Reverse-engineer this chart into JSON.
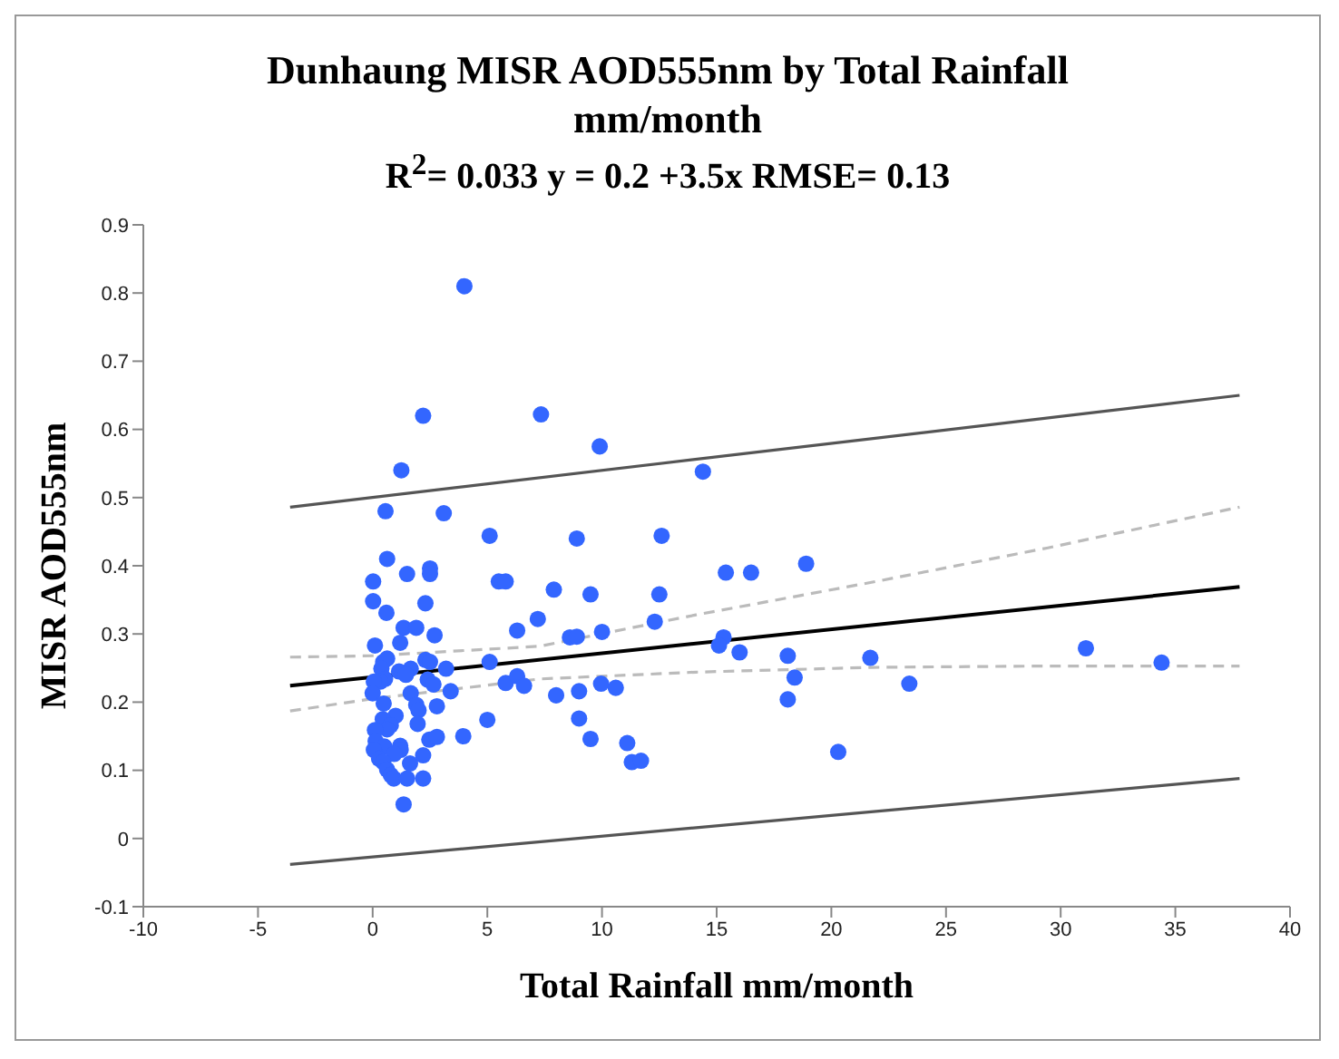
{
  "chart_data": {
    "type": "scatter",
    "title": "Dunhaung MISR AOD555nm by Total Rainfall mm/month",
    "subtitle": "R$^{2}$= 0.033 y = 0.2 +3.5x  RMSE= 0.13",
    "xlabel": "Total Rainfall mm/month",
    "ylabel": "MISR AOD555nm",
    "xlim": [
      -10,
      40
    ],
    "xticks": [
      -10,
      -5,
      0,
      5,
      10,
      15,
      20,
      25,
      30,
      35,
      40
    ],
    "ylim": [
      -0.1,
      0.9
    ],
    "yticks": [
      -0.1,
      0,
      0.1,
      0.2,
      0.3,
      0.4,
      0.5,
      0.6,
      0.7,
      0.8,
      0.9
    ],
    "series": [
      {
        "color": "#3366ff",
        "marker": "circle",
        "x": [
          4.0,
          2.2,
          1.25,
          0.56,
          3.1,
          0.63,
          5.1,
          0.02,
          1.5,
          2.5,
          2.5,
          0.02,
          2.3,
          0.6,
          5.5,
          5.8,
          7.2,
          0.1,
          1.35,
          1.9,
          2.7,
          1.2,
          6.3,
          0.46,
          0.63,
          0.38,
          0.54,
          0.33,
          0.05,
          1.15,
          1.66,
          1.45,
          2.3,
          2.5,
          3.2,
          2.4,
          2.65,
          5.1,
          5.8,
          6.3,
          6.6,
          0,
          1.66,
          3.4,
          0.48,
          1.9,
          2.0,
          2.8,
          1.0,
          5.0,
          0.44,
          0.79,
          0.63,
          0.1,
          1.96,
          2.47,
          2.8,
          3.95,
          0.13,
          0.51,
          1.2,
          1.22,
          0.05,
          0.94,
          0.28,
          0.46,
          2.2,
          1.63,
          0.63,
          0.79,
          0.92,
          1.5,
          2.2,
          1.35,
          7.34,
          9.9,
          14.4,
          8.9,
          12.6,
          7.9,
          9.5,
          12.5,
          15.4,
          16.5,
          18.9,
          12.3,
          8.6,
          8.9,
          10.0,
          15.3,
          15.1,
          16.0,
          18.1,
          21.7,
          8.0,
          9.0,
          9.96,
          10.6,
          18.4,
          18.1,
          9.0,
          9.5,
          11.1,
          11.3,
          11.7,
          20.3,
          23.4,
          31.1,
          34.4
        ],
        "values": [
          0.81,
          0.62,
          0.54,
          0.48,
          0.477,
          0.41,
          0.444,
          0.377,
          0.388,
          0.396,
          0.388,
          0.348,
          0.345,
          0.331,
          0.377,
          0.377,
          0.322,
          0.283,
          0.309,
          0.309,
          0.298,
          0.287,
          0.305,
          0.259,
          0.264,
          0.249,
          0.234,
          0.23,
          0.23,
          0.245,
          0.249,
          0.24,
          0.262,
          0.259,
          0.249,
          0.233,
          0.226,
          0.259,
          0.228,
          0.238,
          0.224,
          0.213,
          0.213,
          0.216,
          0.198,
          0.196,
          0.188,
          0.194,
          0.18,
          0.174,
          0.175,
          0.166,
          0.16,
          0.159,
          0.168,
          0.145,
          0.149,
          0.15,
          0.143,
          0.135,
          0.136,
          0.13,
          0.13,
          0.124,
          0.117,
          0.112,
          0.122,
          0.11,
          0.101,
          0.093,
          0.088,
          0.088,
          0.088,
          0.05,
          0.622,
          0.575,
          0.538,
          0.44,
          0.444,
          0.365,
          0.358,
          0.358,
          0.39,
          0.39,
          0.403,
          0.318,
          0.295,
          0.296,
          0.303,
          0.295,
          0.283,
          0.273,
          0.268,
          0.265,
          0.21,
          0.216,
          0.227,
          0.221,
          0.236,
          0.204,
          0.176,
          0.146,
          0.14,
          0.112,
          0.114,
          0.127,
          0.227,
          0.279,
          0.258
        ]
      },
      {
        "type": "line",
        "color": "#000000",
        "marker": "none",
        "line_style": "solid",
        "x": [
          -3.6,
          37.8
        ],
        "values": [
          0.224,
          0.369
        ]
      },
      {
        "type": "line",
        "color": "#bbbbbb",
        "marker": "none",
        "line_style": "dashed",
        "x": [
          -3.6,
          0,
          7.3,
          14.1,
          21.8,
          29.4,
          37.8
        ],
        "values": [
          0.266,
          0.268,
          0.282,
          0.328,
          0.376,
          0.426,
          0.486
        ]
      },
      {
        "type": "line",
        "color": "#bbbbbb",
        "marker": "none",
        "line_style": "dashed",
        "x": [
          -3.6,
          0,
          7.3,
          14.1,
          21.8,
          29.4,
          37.8
        ],
        "values": [
          0.187,
          0.205,
          0.234,
          0.244,
          0.251,
          0.253,
          0.253
        ]
      },
      {
        "type": "line",
        "color": "#555555",
        "marker": "none",
        "line_style": "solid",
        "x": [
          -3.6,
          37.8
        ],
        "values": [
          0.486,
          0.65
        ]
      },
      {
        "type": "line",
        "color": "#555555",
        "marker": "none",
        "line_style": "solid",
        "x": [
          -3.6,
          37.8
        ],
        "values": [
          -0.038,
          0.088
        ]
      }
    ]
  }
}
